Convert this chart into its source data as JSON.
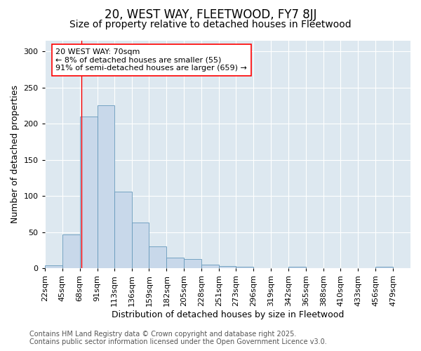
{
  "title": "20, WEST WAY, FLEETWOOD, FY7 8JJ",
  "subtitle": "Size of property relative to detached houses in Fleetwood",
  "xlabel": "Distribution of detached houses by size in Fleetwood",
  "ylabel": "Number of detached properties",
  "bar_color": "#c8d8ea",
  "bar_edge_color": "#6699bb",
  "background_color": "#dde8f0",
  "grid_color": "#ffffff",
  "bins": [
    22,
    45,
    68,
    91,
    113,
    136,
    159,
    182,
    205,
    228,
    251,
    273,
    296,
    319,
    342,
    365,
    388,
    410,
    433,
    456,
    479,
    502
  ],
  "bin_labels": [
    "22sqm",
    "45sqm",
    "68sqm",
    "91sqm",
    "113sqm",
    "136sqm",
    "159sqm",
    "182sqm",
    "205sqm",
    "228sqm",
    "251sqm",
    "273sqm",
    "296sqm",
    "319sqm",
    "342sqm",
    "365sqm",
    "388sqm",
    "410sqm",
    "433sqm",
    "456sqm",
    "479sqm"
  ],
  "values": [
    4,
    47,
    210,
    225,
    106,
    63,
    30,
    15,
    13,
    5,
    3,
    2,
    0,
    0,
    2,
    0,
    0,
    0,
    0,
    2,
    0
  ],
  "red_line_x": 70,
  "annotation_text": "20 WEST WAY: 70sqm\n← 8% of detached houses are smaller (55)\n91% of semi-detached houses are larger (659) →",
  "ylim": [
    0,
    315
  ],
  "yticks": [
    0,
    50,
    100,
    150,
    200,
    250,
    300
  ],
  "footer_text": "Contains HM Land Registry data © Crown copyright and database right 2025.\nContains public sector information licensed under the Open Government Licence v3.0.",
  "title_fontsize": 12,
  "subtitle_fontsize": 10,
  "axis_label_fontsize": 9,
  "tick_fontsize": 8,
  "annotation_fontsize": 8,
  "footer_fontsize": 7
}
